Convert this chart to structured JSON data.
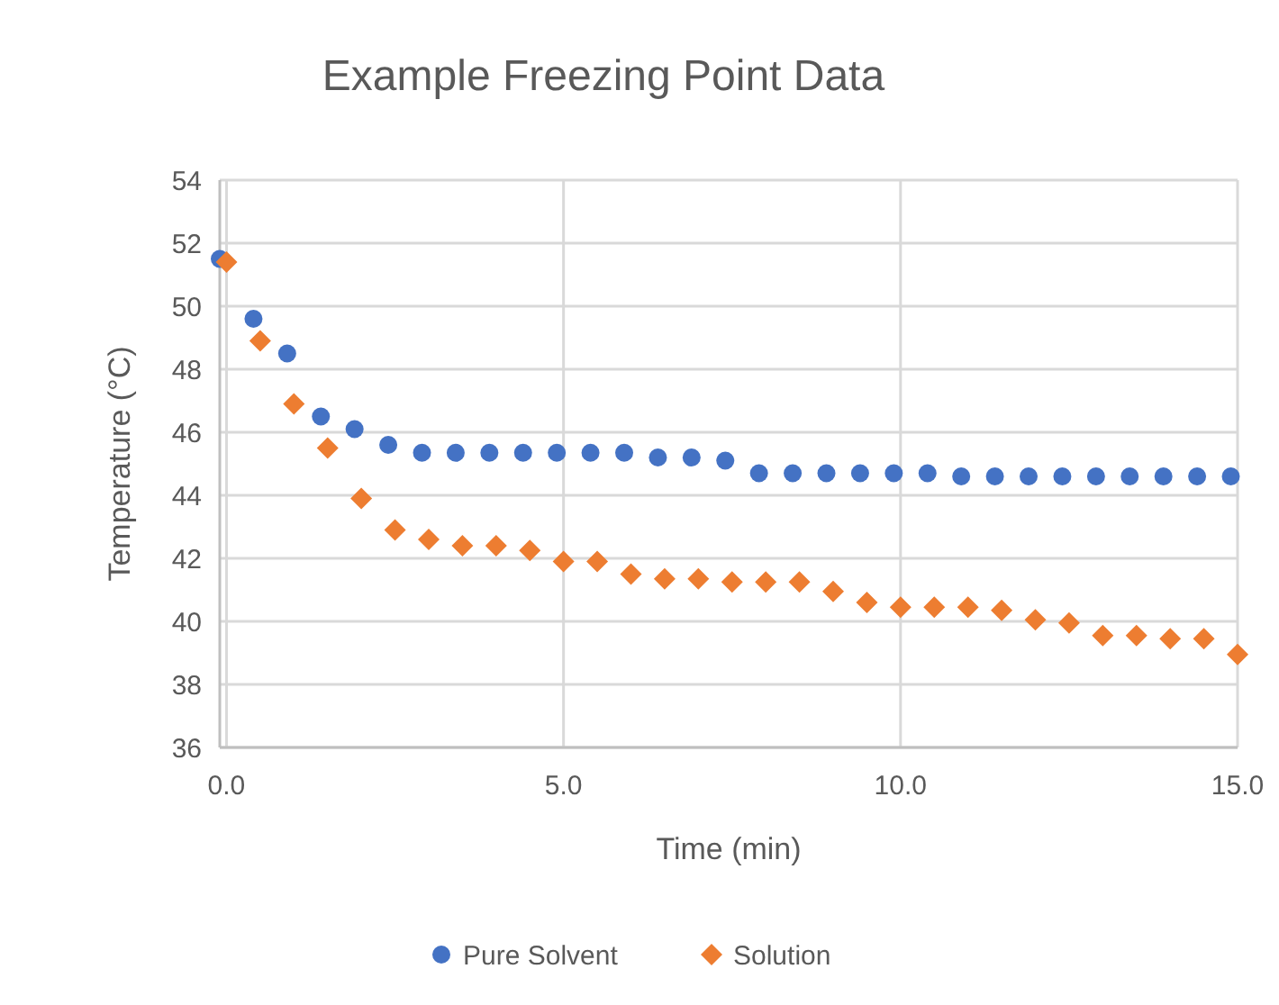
{
  "chart_data": {
    "type": "scatter",
    "title": "Example Freezing Point Data",
    "xlabel": "Time (min)",
    "ylabel": "Temperature (°C)",
    "xlim": [
      -0.1,
      15
    ],
    "xticks": [
      {
        "value": 0,
        "label": "0.0"
      },
      {
        "value": 5,
        "label": "5.0"
      },
      {
        "value": 10,
        "label": "10.0"
      },
      {
        "value": 15,
        "label": "15.0"
      }
    ],
    "ylim": [
      36,
      54
    ],
    "yticks": [
      36,
      38,
      40,
      42,
      44,
      46,
      48,
      50,
      52,
      54
    ],
    "grid": true,
    "legend": "bottom",
    "series": [
      {
        "name": "Pure Solvent",
        "color": "#4472c4",
        "marker": "circle",
        "x": [
          -0.1,
          0.4,
          0.9,
          1.4,
          1.9,
          2.4,
          2.9,
          3.4,
          3.9,
          4.4,
          4.9,
          5.4,
          5.9,
          6.4,
          6.9,
          7.4,
          7.9,
          8.4,
          8.9,
          9.4,
          9.9,
          10.4,
          10.9,
          11.4,
          11.9,
          12.4,
          12.9,
          13.4,
          13.9,
          14.4,
          14.9
        ],
        "values": [
          51.5,
          49.6,
          48.5,
          46.5,
          46.1,
          45.6,
          45.35,
          45.35,
          45.35,
          45.35,
          45.35,
          45.35,
          45.35,
          45.2,
          45.2,
          45.1,
          44.7,
          44.7,
          44.7,
          44.7,
          44.7,
          44.7,
          44.6,
          44.6,
          44.6,
          44.6,
          44.6,
          44.6,
          44.6,
          44.6,
          44.6
        ]
      },
      {
        "name": "Solution",
        "color": "#ed7d31",
        "marker": "diamond",
        "x": [
          0,
          0.5,
          1,
          1.5,
          2,
          2.5,
          3,
          3.5,
          4,
          4.5,
          5,
          5.5,
          6,
          6.5,
          7,
          7.5,
          8,
          8.5,
          9,
          9.5,
          10,
          10.5,
          11,
          11.5,
          12,
          12.5,
          13,
          13.5,
          14,
          14.5,
          15
        ],
        "values": [
          51.4,
          48.9,
          46.9,
          45.5,
          43.9,
          42.9,
          42.6,
          42.4,
          42.4,
          42.25,
          41.9,
          41.9,
          41.5,
          41.35,
          41.35,
          41.25,
          41.25,
          41.25,
          40.95,
          40.6,
          40.45,
          40.45,
          40.45,
          40.35,
          40.05,
          39.95,
          39.55,
          39.55,
          39.45,
          39.45,
          38.95
        ]
      }
    ]
  }
}
